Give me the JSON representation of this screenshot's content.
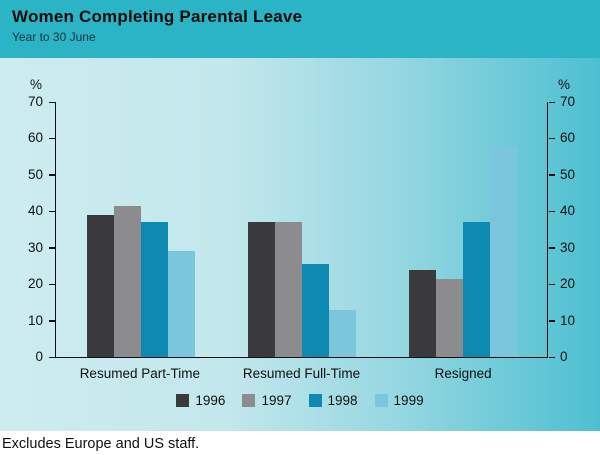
{
  "header": {
    "title": "Women Completing Parental Leave",
    "subtitle": "Year to 30 June"
  },
  "footnote": "Excludes Europe and US staff.",
  "colors": {
    "header_band": "#2bb4c6",
    "plot_bg_left": "#cdecf0",
    "plot_bg_right": "#4dbfd1",
    "axis": "#101010"
  },
  "chart_data": {
    "type": "bar",
    "categories": [
      "Resumed Part-Time",
      "Resumed Full-Time",
      "Resigned"
    ],
    "series": [
      {
        "name": "1996",
        "color": "#3a3a3c",
        "values": [
          39,
          37,
          24
        ]
      },
      {
        "name": "1997",
        "color": "#8c8c8e",
        "values": [
          41.5,
          37,
          21.5
        ]
      },
      {
        "name": "1998",
        "color": "#0e8ab2",
        "values": [
          37,
          25.5,
          37
        ]
      },
      {
        "name": "1999",
        "color": "#7cc6dd",
        "values": [
          29,
          13,
          58
        ]
      }
    ],
    "ylabel_left": "%",
    "ylabel_right": "%",
    "ylim": [
      0,
      70
    ],
    "yticks": [
      0,
      10,
      20,
      30,
      40,
      50,
      60,
      70
    ],
    "legend_position": "bottom",
    "grid": false
  }
}
